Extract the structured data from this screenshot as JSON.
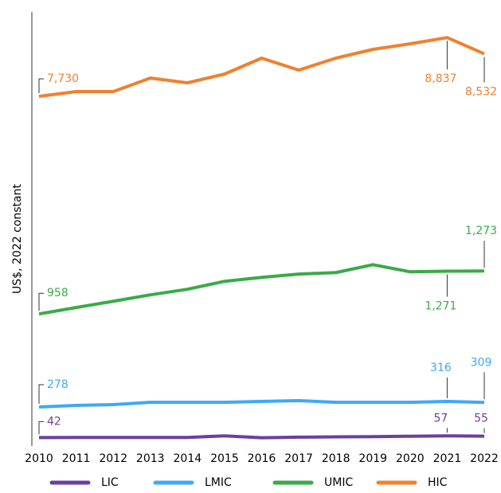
{
  "chart_data": {
    "type": "line",
    "y_label": "US$, 2022 constant",
    "x": [
      "2010",
      "2011",
      "2012",
      "2013",
      "2014",
      "2015",
      "2016",
      "2017",
      "2018",
      "2019",
      "2020",
      "2021",
      "2022"
    ],
    "series": [
      {
        "name": "LIC",
        "color": "#6b3fa0",
        "ylim": [
          0,
          4000
        ],
        "values": [
          42,
          43,
          43,
          43,
          43,
          57,
          40,
          45,
          48,
          50,
          54,
          57,
          55
        ],
        "value_labels": [
          "42",
          null,
          null,
          null,
          null,
          null,
          null,
          null,
          null,
          null,
          null,
          "57",
          "55"
        ]
      },
      {
        "name": "LMIC",
        "color": "#3fa9f5",
        "ylim": [
          40,
          2960
        ],
        "values": [
          278,
          289,
          294,
          310,
          310,
          310,
          316,
          321,
          310,
          310,
          310,
          316,
          309
        ],
        "value_labels": [
          "278",
          null,
          null,
          null,
          null,
          null,
          null,
          null,
          null,
          null,
          null,
          "316",
          "309"
        ]
      },
      {
        "name": "UMIC",
        "color": "#3aaa48",
        "ylim": [
          20,
          3170
        ],
        "values": [
          958,
          1005,
          1051,
          1098,
          1139,
          1197,
          1226,
          1250,
          1261,
          1319,
          1267,
          1271,
          1273
        ],
        "value_labels": [
          "958",
          null,
          null,
          null,
          null,
          null,
          null,
          null,
          null,
          null,
          null,
          "1,271",
          "1,273"
        ]
      },
      {
        "name": "HIC",
        "color": "#f0802f",
        "ylim": [
          1220,
          9320
        ],
        "values": [
          7730,
          7820,
          7820,
          8075,
          7985,
          8150,
          8450,
          8225,
          8450,
          8615,
          8720,
          8837,
          8532
        ],
        "value_labels": [
          "7,730",
          null,
          null,
          null,
          null,
          null,
          null,
          null,
          null,
          null,
          null,
          "8,837",
          "8,532"
        ]
      }
    ]
  }
}
